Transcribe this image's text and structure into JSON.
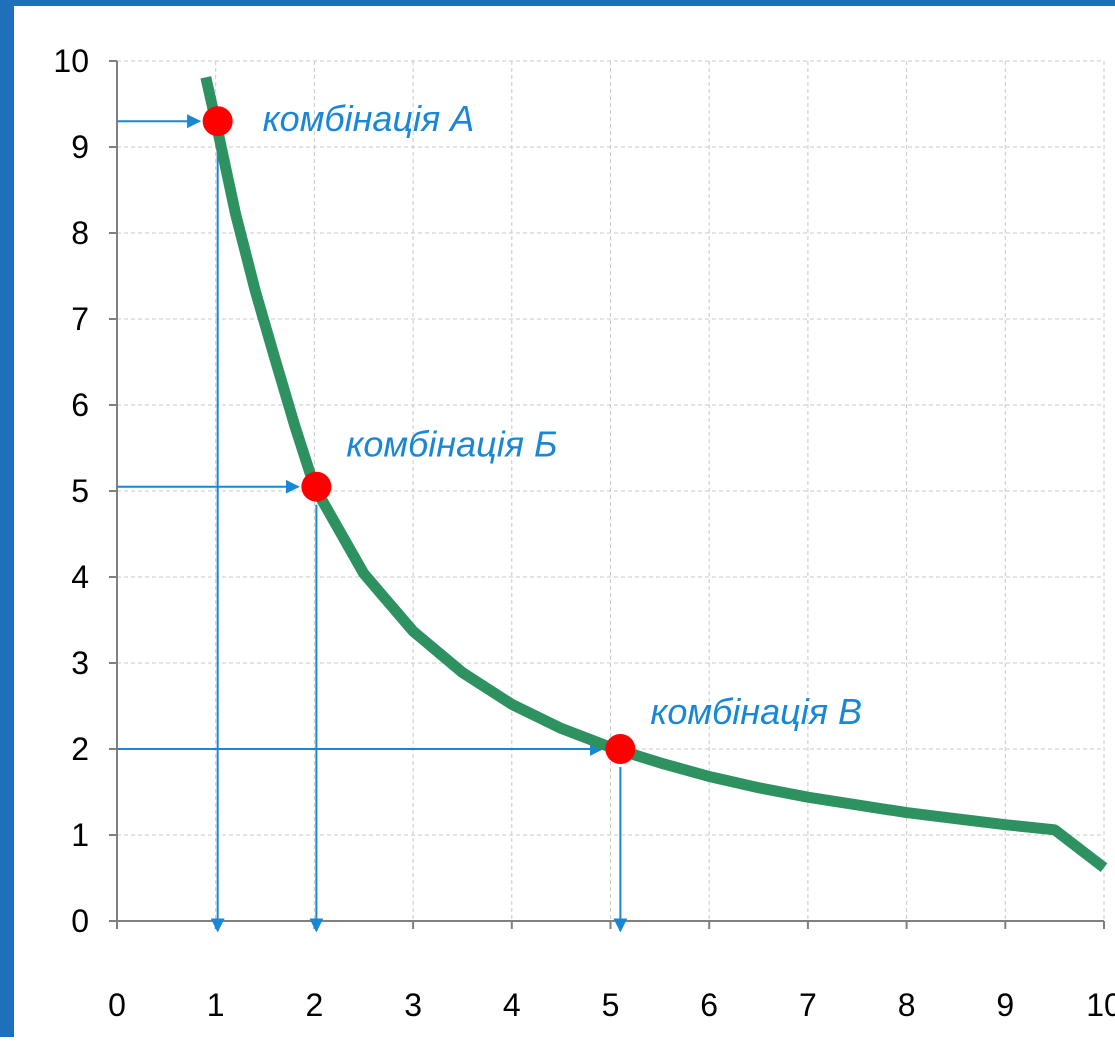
{
  "chart_data": {
    "type": "line",
    "title": "",
    "xlabel": "",
    "ylabel": "",
    "xlim": [
      0,
      10
    ],
    "ylim": [
      0,
      10
    ],
    "grid": true,
    "x_ticks": [
      "0",
      "1",
      "2",
      "3",
      "4",
      "5",
      "6",
      "7",
      "8",
      "9",
      "10"
    ],
    "y_ticks": [
      "0",
      "1",
      "2",
      "3",
      "4",
      "5",
      "6",
      "7",
      "8",
      "9",
      "10"
    ],
    "series": [
      {
        "x": [
          0.9,
          1.0,
          1.2,
          1.4,
          1.6,
          1.8,
          2.0,
          2.5,
          3.0,
          3.5,
          4.0,
          4.5,
          5.0,
          5.5,
          6.0,
          6.5,
          7.0,
          7.5,
          8.0,
          8.5,
          9.0,
          9.5,
          10.0
        ],
        "y": [
          9.81,
          9.3,
          8.23,
          7.33,
          6.54,
          5.76,
          5.05,
          4.04,
          3.37,
          2.89,
          2.52,
          2.24,
          2.02,
          1.84,
          1.68,
          1.55,
          1.44,
          1.35,
          1.26,
          1.19,
          1.12,
          1.06,
          0.62
        ]
      }
    ],
    "points": [
      {
        "label": "комбінація А",
        "x": 1.02,
        "y": 9.3
      },
      {
        "label": "комбінація Б",
        "x": 2.02,
        "y": 5.05
      },
      {
        "label": "комбінація В",
        "x": 5.1,
        "y": 2.0
      }
    ]
  },
  "colors": {
    "frame": "#1f6fba",
    "curve": "#2e9160",
    "point": "#ff0000",
    "guide": "#1a87d6",
    "annotation": "#1a87d6",
    "grid": "#c8c8c8",
    "axis": "#808080"
  }
}
